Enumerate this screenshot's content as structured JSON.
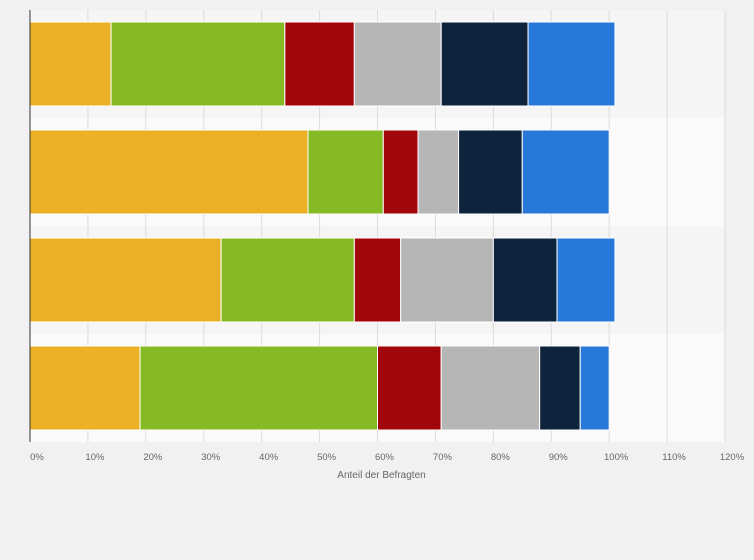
{
  "chart_data": {
    "type": "bar",
    "orientation": "horizontal",
    "stacked": true,
    "title": "",
    "xlabel": "Anteil der Befragten",
    "ylabel": "",
    "xlim": [
      0,
      120
    ],
    "xticks": [
      "0%",
      "10%",
      "20%",
      "30%",
      "40%",
      "50%",
      "60%",
      "70%",
      "80%",
      "90%",
      "100%",
      "110%",
      "120%"
    ],
    "categories": [
      "",
      "",
      "",
      ""
    ],
    "grid": true,
    "legend": "none",
    "series": [
      {
        "color": "#ebb026",
        "values": [
          14,
          48,
          33,
          19
        ]
      },
      {
        "color": "#86ba24",
        "values": [
          30,
          13,
          23,
          41
        ]
      },
      {
        "color": "#a1060a",
        "values": [
          12,
          6,
          8,
          11
        ]
      },
      {
        "color": "#b6b6b6",
        "values": [
          15,
          7,
          16,
          17
        ]
      },
      {
        "color": "#0e243d",
        "values": [
          15,
          11,
          11,
          7
        ]
      },
      {
        "color": "#2778d9",
        "values": [
          15,
          15,
          10,
          5
        ]
      }
    ]
  }
}
